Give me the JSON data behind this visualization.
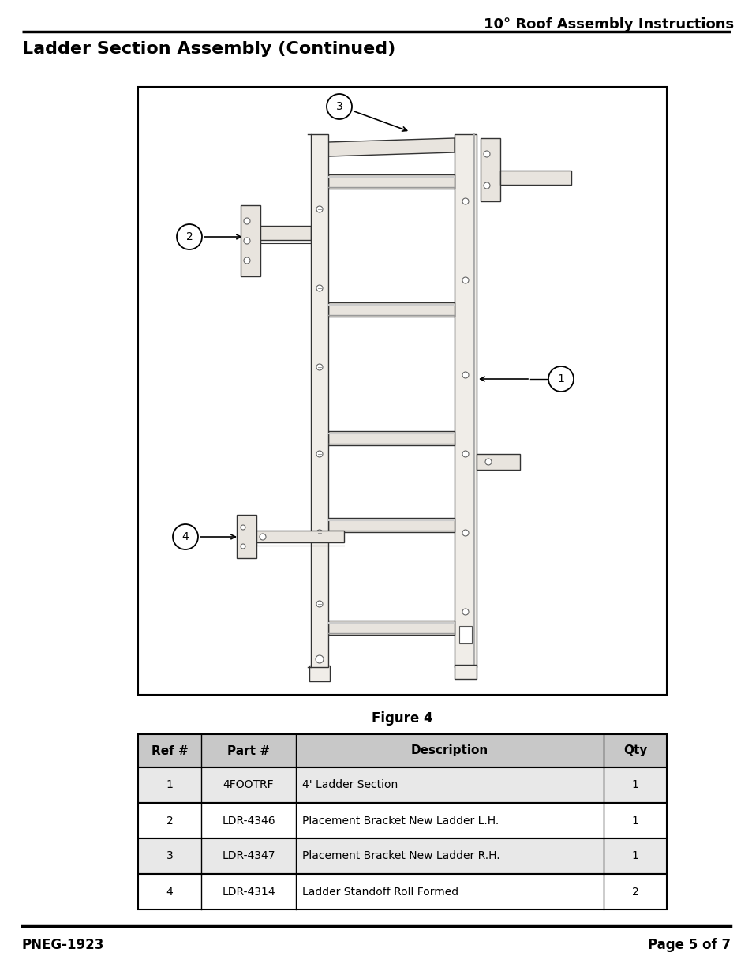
{
  "page_title": "10° Roof Assembly Instructions",
  "section_title": "Ladder Section Assembly (Continued)",
  "figure_caption": "Figure 4",
  "table_headers": [
    "Ref #",
    "Part #",
    "Description",
    "Qty"
  ],
  "table_rows": [
    [
      "1",
      "4FOOTRF",
      "4' Ladder Section",
      "1"
    ],
    [
      "2",
      "LDR-4346",
      "Placement Bracket New Ladder L.H.",
      "1"
    ],
    [
      "3",
      "LDR-4347",
      "Placement Bracket New Ladder R.H.",
      "1"
    ],
    [
      "4",
      "LDR-4314",
      "Ladder Standoff Roll Formed",
      "2"
    ]
  ],
  "footer_left": "PNEG-1923",
  "footer_right": "Page 5 of 7",
  "bg_color": "#ffffff",
  "rail_fill": "#f0ede8",
  "rail_edge": "#333333",
  "rung_fill": "#e8e4de",
  "rung_edge": "#333333",
  "bracket_fill": "#e8e4de",
  "bracket_edge": "#333333",
  "header_bg": "#c8c8c8",
  "row_bg_odd": "#e8e8e8",
  "row_bg_even": "#ffffff"
}
